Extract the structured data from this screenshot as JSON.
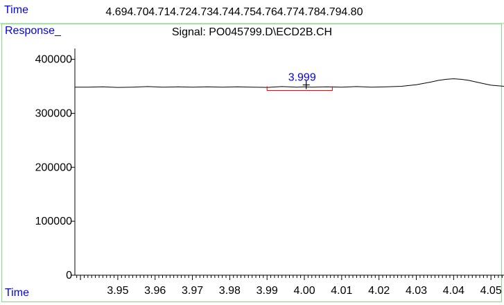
{
  "top_axis": {
    "label": "Time",
    "ticks": [
      "4.69",
      "4.70",
      "4.71",
      "4.72",
      "4.73",
      "4.74",
      "4.75",
      "4.76",
      "4.77",
      "4.78",
      "4.79",
      "4.80"
    ]
  },
  "chart_data": {
    "type": "line",
    "title": "Signal: PO045799.D\\ECD2B.CH",
    "ylabel": "Response_",
    "xlabel": "Time",
    "xlim": [
      3.9385,
      4.0535
    ],
    "ylim": [
      0,
      420000
    ],
    "yticks": [
      "0",
      "100000",
      "200000",
      "300000",
      "400000"
    ],
    "ytick_values": [
      0,
      100000,
      200000,
      300000,
      400000
    ],
    "xticks": [
      "3.95",
      "3.96",
      "3.97",
      "3.98",
      "3.99",
      "4.00",
      "4.01",
      "4.02",
      "4.03",
      "4.04",
      "4.05"
    ],
    "xtick_values": [
      3.95,
      3.96,
      3.97,
      3.98,
      3.99,
      4.0,
      4.01,
      4.02,
      4.03,
      4.04,
      4.05
    ],
    "series": [
      {
        "x": [
          3.9385,
          3.942,
          3.946,
          3.95,
          3.954,
          3.958,
          3.962,
          3.966,
          3.97,
          3.974,
          3.978,
          3.982,
          3.986,
          3.99,
          3.994,
          3.998,
          4.0,
          4.002,
          4.006,
          4.01,
          4.014,
          4.018,
          4.022,
          4.026,
          4.03,
          4.034,
          4.036,
          4.038,
          4.04,
          4.042,
          4.044,
          4.046,
          4.048,
          4.05,
          4.0535
        ],
        "values": [
          348500,
          348500,
          349000,
          348000,
          348500,
          349500,
          348500,
          349000,
          348500,
          349000,
          348500,
          349000,
          348500,
          348000,
          349500,
          348500,
          349000,
          348500,
          349000,
          348500,
          349500,
          348500,
          349000,
          350000,
          353000,
          358000,
          361000,
          363000,
          364000,
          363000,
          361000,
          358000,
          355000,
          352000,
          350000
        ]
      }
    ],
    "peak": {
      "label": "3.999",
      "x": 4.0005,
      "y": 350000
    },
    "integration": {
      "x_start": 3.99,
      "x_end": 4.0075
    },
    "colors": {
      "axis_labels": "#0000ee",
      "frame": "#7ce07c",
      "baseline": "#ff0000",
      "trace": "#000000"
    }
  }
}
